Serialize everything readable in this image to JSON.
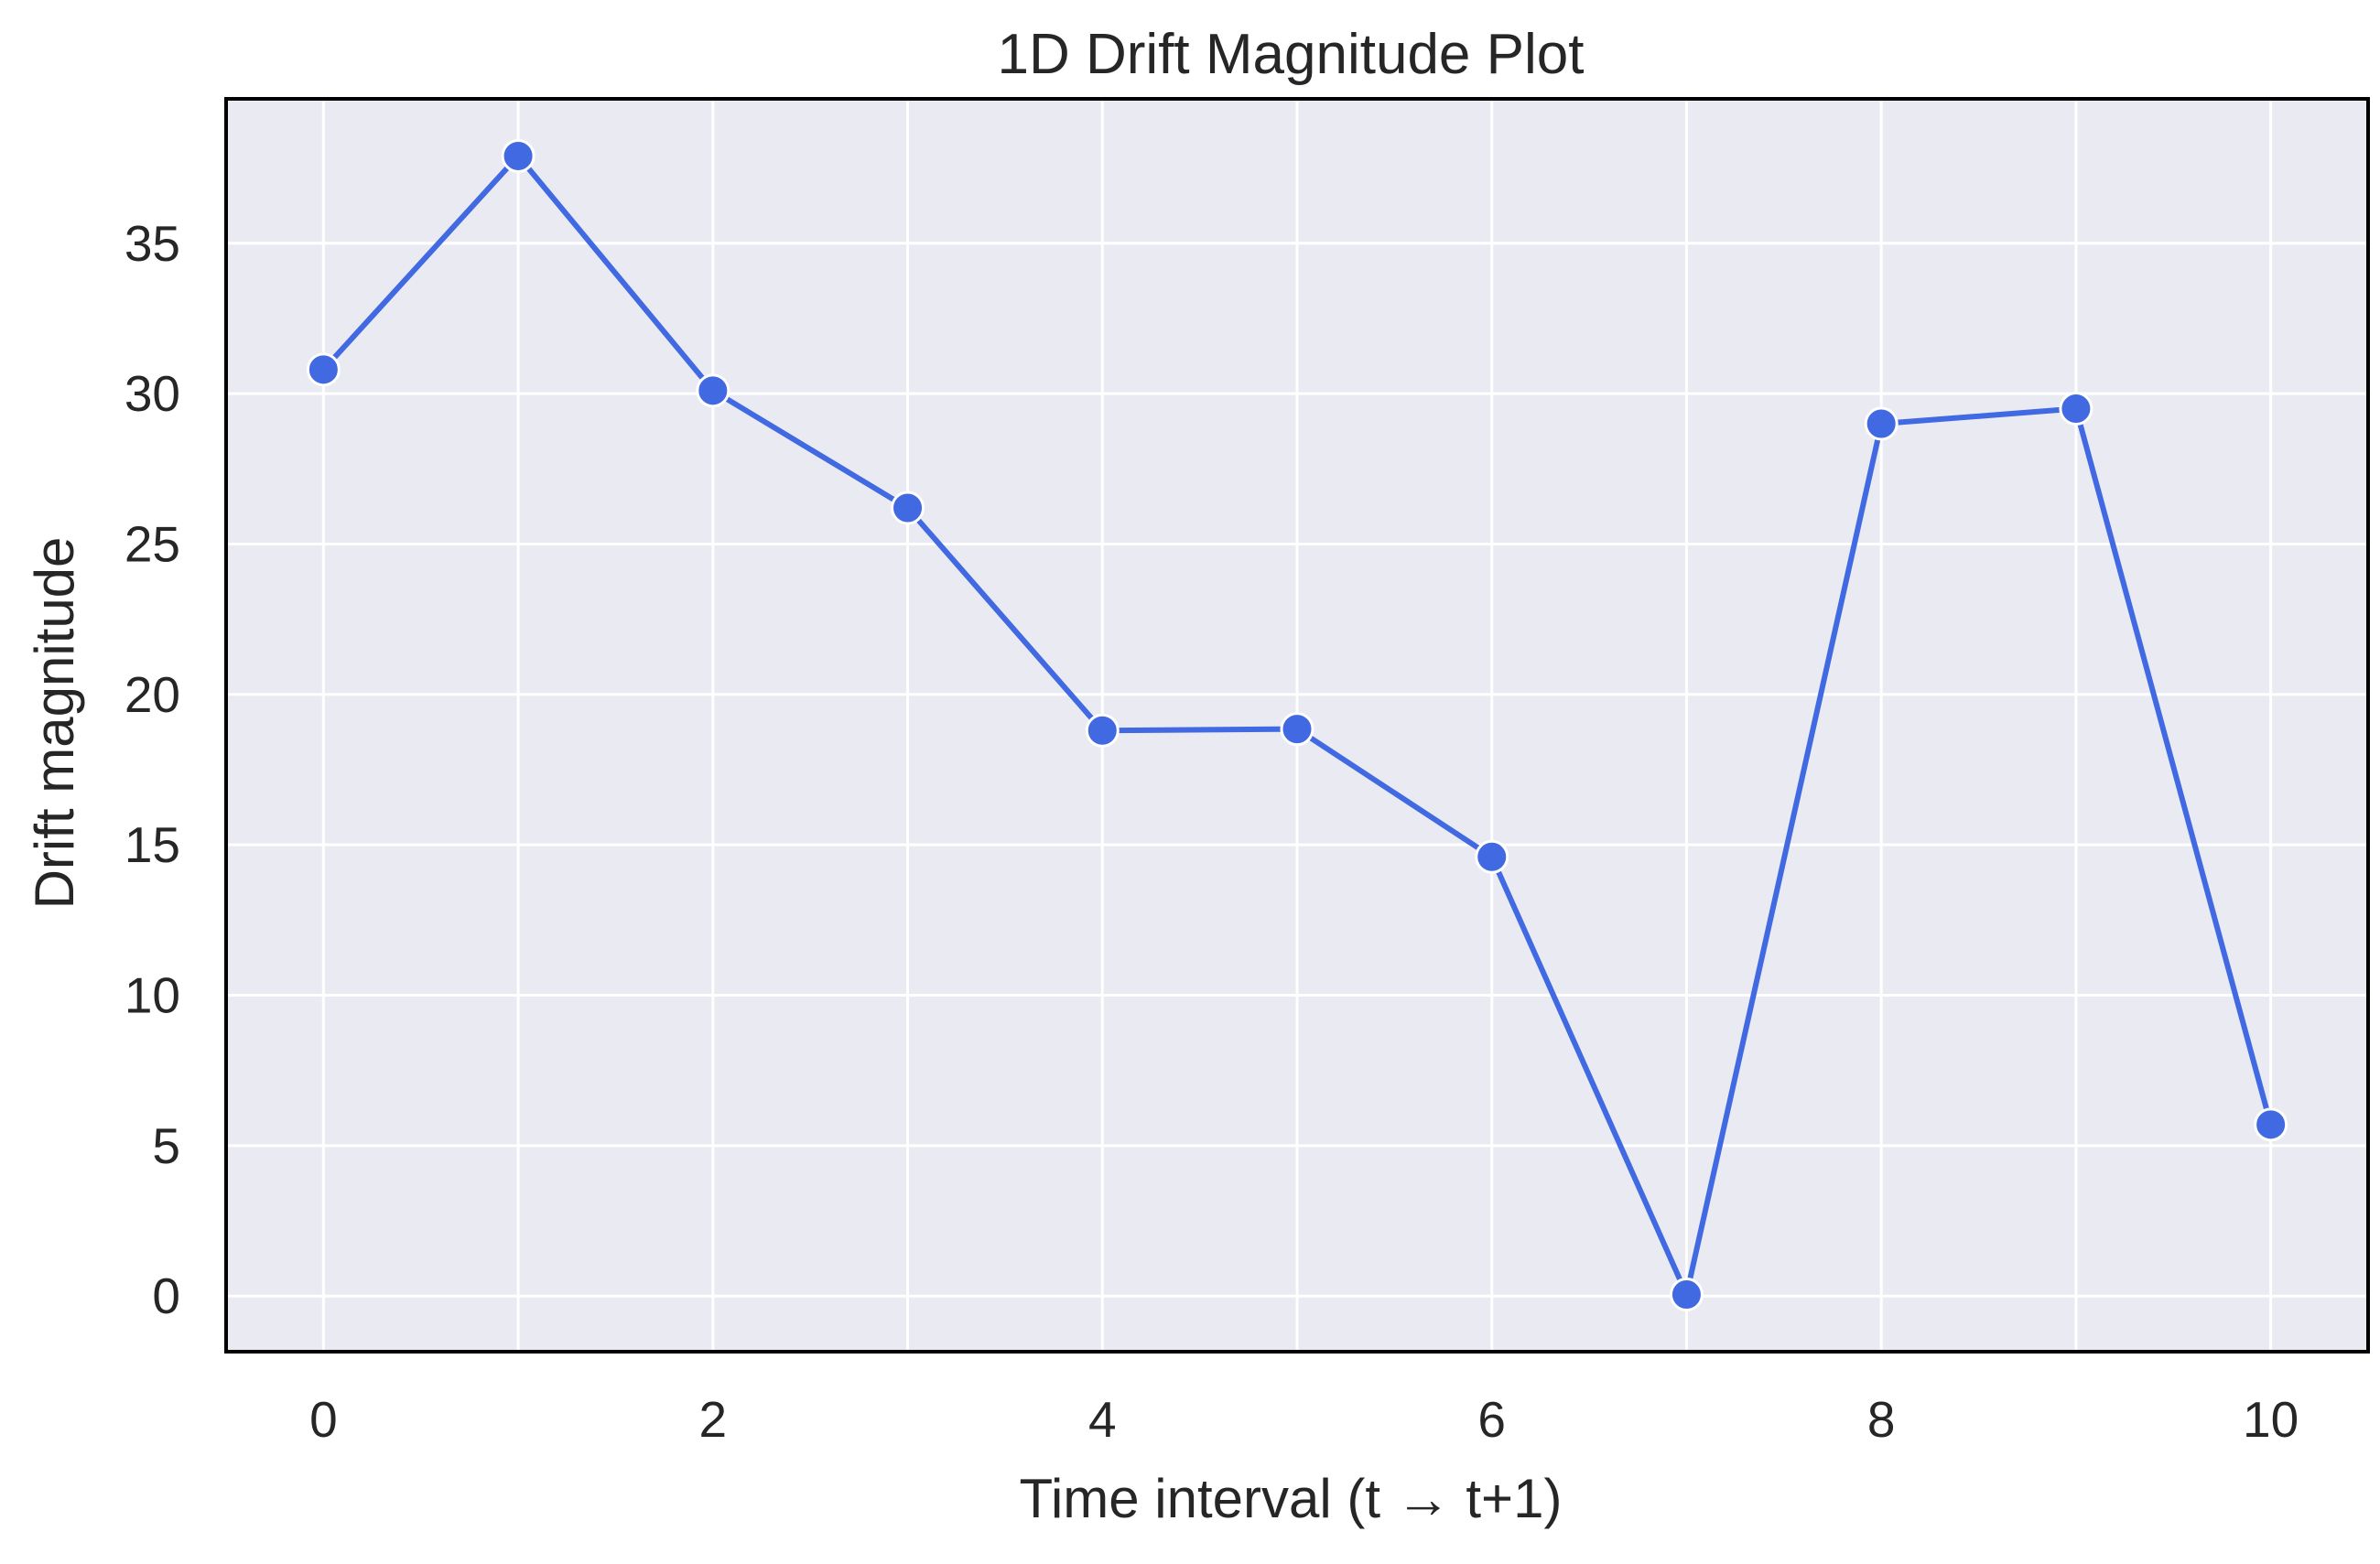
{
  "colors": {
    "plot_background": "#eaeaf2",
    "grid": "#ffffff",
    "frame": "#000000",
    "line": "#4169e1",
    "marker_edge": "#ffffff"
  },
  "chart_data": {
    "type": "line",
    "title": "1D Drift Magnitude Plot",
    "xlabel": "Time interval (t → t+1)",
    "ylabel": "Drift magnitude",
    "x": [
      0,
      1,
      2,
      3,
      4,
      5,
      6,
      7,
      8,
      9,
      10
    ],
    "series": [
      {
        "values": [
          30.8,
          37.9,
          30.1,
          26.2,
          18.8,
          18.85,
          14.6,
          0.05,
          29.0,
          29.5,
          5.7
        ]
      }
    ],
    "xlim": [
      -0.5,
      10.5
    ],
    "ylim": [
      -1.85,
      39.8
    ],
    "xticks": [
      0,
      2,
      4,
      6,
      8,
      10
    ],
    "xtick_labels": [
      "0",
      "2",
      "4",
      "6",
      "8",
      "10"
    ],
    "yticks": [
      0,
      5,
      10,
      15,
      20,
      25,
      30,
      35
    ],
    "ytick_labels": [
      "0",
      "5",
      "10",
      "15",
      "20",
      "25",
      "30",
      "35"
    ],
    "grid": true,
    "legend": "none",
    "markers": "circle"
  }
}
